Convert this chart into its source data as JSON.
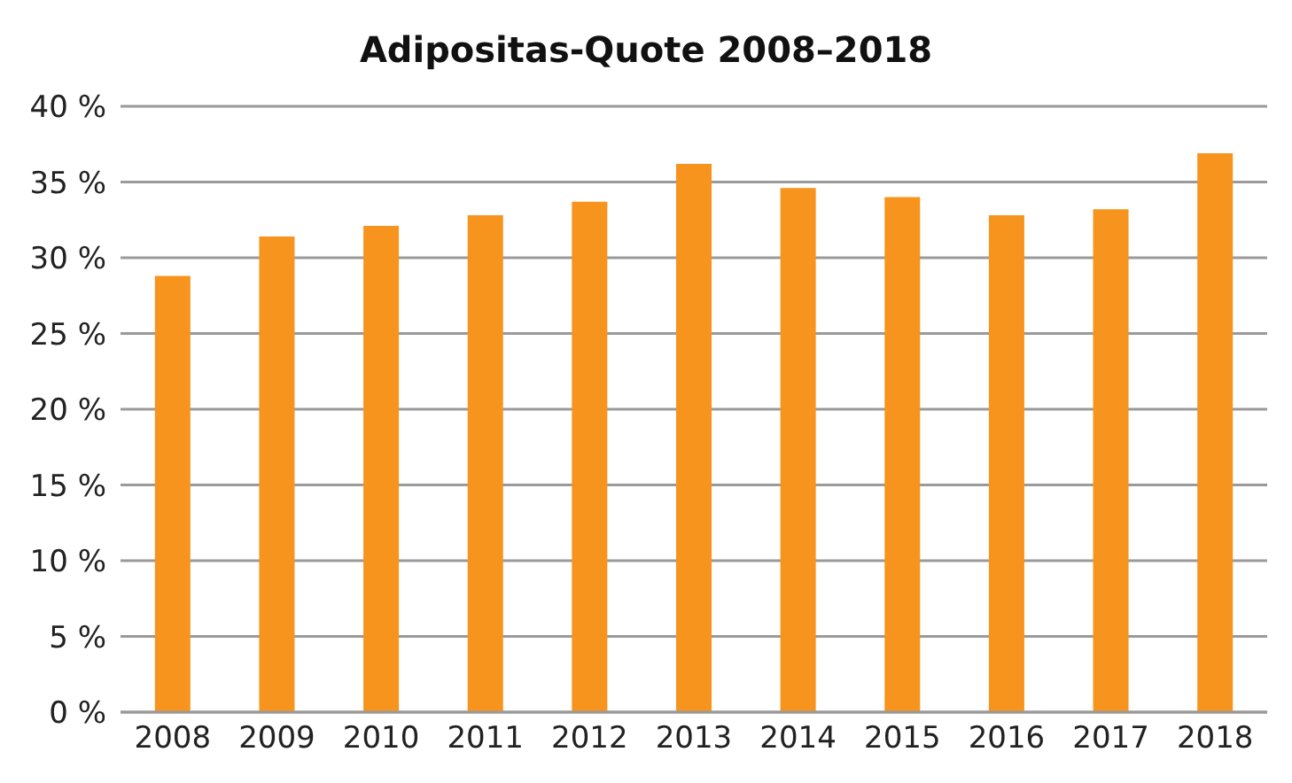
{
  "chart_data": {
    "type": "bar",
    "title": "Adipositas-Quote 2008–2018",
    "categories": [
      "2008",
      "2009",
      "2010",
      "2011",
      "2012",
      "2013",
      "2014",
      "2015",
      "2016",
      "2017",
      "2018"
    ],
    "values": [
      28.8,
      31.4,
      32.1,
      32.8,
      33.7,
      36.2,
      34.6,
      34.0,
      32.8,
      33.2,
      36.9
    ],
    "color": "#f7941d",
    "ylim": [
      0,
      40
    ],
    "yticks": [
      {
        "value": 0,
        "label": "0 %"
      },
      {
        "value": 5,
        "label": "5 %"
      },
      {
        "value": 10,
        "label": "10 %"
      },
      {
        "value": 15,
        "label": "15 %"
      },
      {
        "value": 20,
        "label": "20 %"
      },
      {
        "value": 25,
        "label": "25 %"
      },
      {
        "value": 30,
        "label": "30 %"
      },
      {
        "value": 35,
        "label": "35 %"
      },
      {
        "value": 40,
        "label": "40 %"
      }
    ],
    "grid": "y",
    "legend": false
  }
}
